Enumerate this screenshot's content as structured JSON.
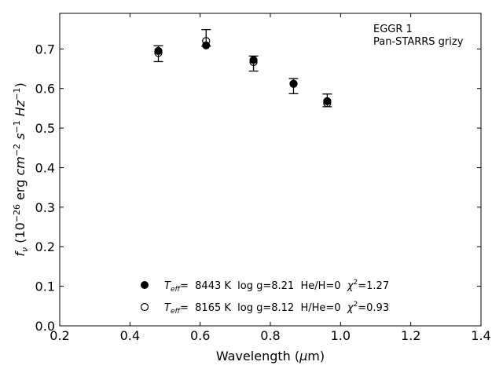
{
  "chart_data": {
    "type": "scatter",
    "annotation": [
      "EGGR 1",
      "Pan-STARRS grizy"
    ],
    "xlabel": "Wavelength (μm)",
    "ylabel": "f_ν (10^−26 erg cm^−2 s^−1 Hz^−1)",
    "xlim": [
      0.2,
      1.4
    ],
    "ylim": [
      0.0,
      0.79
    ],
    "xticks": [
      0.2,
      0.4,
      0.6,
      0.8,
      1.0,
      1.2,
      1.4
    ],
    "xtick_labels": [
      "0.2",
      "0.4",
      "0.6",
      "0.8",
      "1.0",
      "1.2",
      "1.4"
    ],
    "yticks": [
      0.0,
      0.1,
      0.2,
      0.3,
      0.4,
      0.5,
      0.6,
      0.7
    ],
    "ytick_labels": [
      "0.0",
      "0.1",
      "0.2",
      "0.3",
      "0.4",
      "0.5",
      "0.6",
      "0.7"
    ],
    "grid": false,
    "legend_position": "bottom-center",
    "observed": {
      "x": [
        0.481,
        0.617,
        0.752,
        0.866,
        0.962
      ],
      "y": [
        0.688,
        0.728,
        0.663,
        0.606,
        0.57
      ],
      "yerr": [
        0.02,
        0.021,
        0.019,
        0.019,
        0.016
      ]
    },
    "series": [
      {
        "name": "T_eff= 8443 K log g=8.21 He/H=0 χ²=1.27",
        "marker": "filled",
        "x": [
          0.481,
          0.617,
          0.752,
          0.866,
          0.962
        ],
        "y": [
          0.695,
          0.709,
          0.672,
          0.612,
          0.568
        ]
      },
      {
        "name": "T_eff= 8165 K log g=8.12 H/He=0 χ²=0.93",
        "marker": "open",
        "x": [
          0.481,
          0.617,
          0.752,
          0.866,
          0.962
        ],
        "y": [
          0.69,
          0.72,
          0.667,
          0.612,
          0.563
        ]
      }
    ],
    "legend": [
      {
        "teff_label": "T",
        "teff_sub": "eff",
        "rest": "=  8443 K  log g=8.21  He/H=0  ",
        "chi": "χ",
        "chi_sup": "2",
        "chi_rest": "=1.27"
      },
      {
        "teff_label": "T",
        "teff_sub": "eff",
        "rest": "=  8165 K  log g=8.12  H/He=0  ",
        "chi": "χ",
        "chi_sup": "2",
        "chi_rest": "=0.93"
      }
    ]
  },
  "colors": {
    "marker": "#000000",
    "background": "#ffffff"
  }
}
